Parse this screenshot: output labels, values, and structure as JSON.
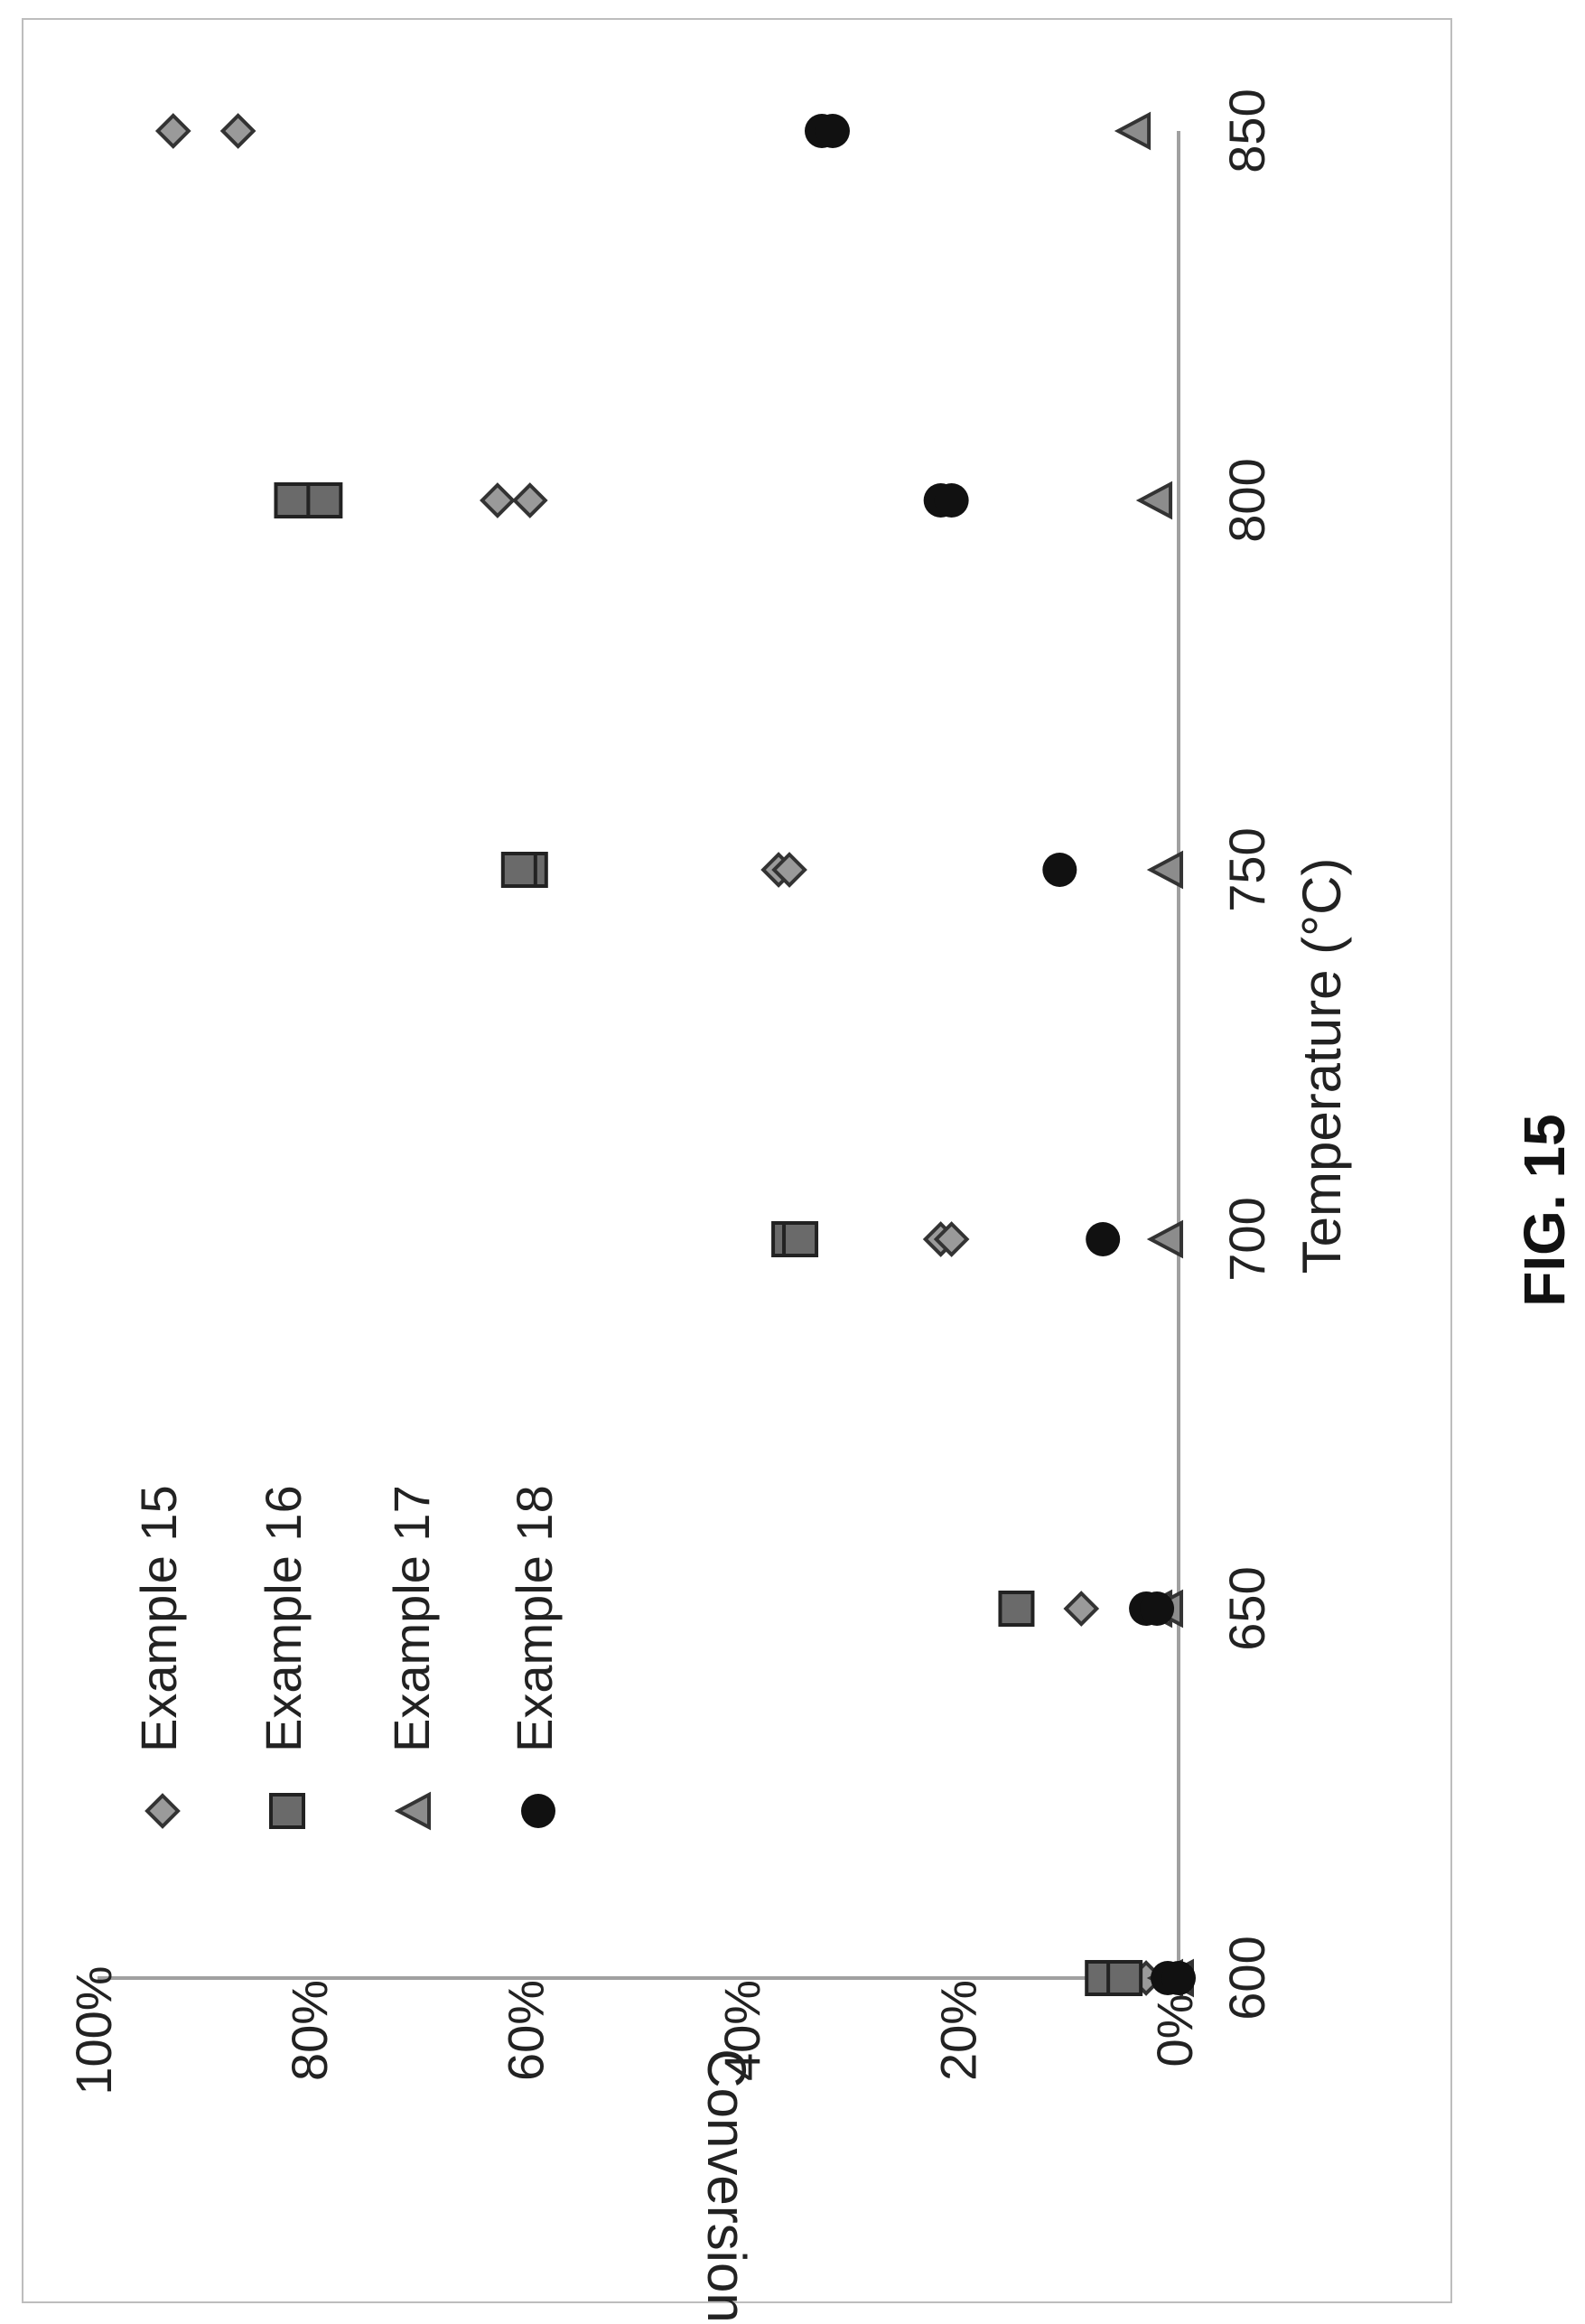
{
  "figure_label": "FIG. 15",
  "colors": {
    "diamond": "#9a9a9a",
    "square": "#6a6a6a",
    "triangle": "#8c8c8c",
    "circle": "#111111",
    "axis": "#a0a0a0",
    "text": "#222222"
  },
  "chart_data": {
    "type": "scatter",
    "title": "",
    "xlabel": "Temperature (°C)",
    "ylabel": "Conversion",
    "x_ticks": [
      "600",
      "650",
      "700",
      "750",
      "800",
      "850"
    ],
    "y_ticks": [
      "0%",
      "20%",
      "40%",
      "60%",
      "80%",
      "100%"
    ],
    "xlim": [
      600,
      850
    ],
    "ylim": [
      0,
      100
    ],
    "grid": false,
    "legend_position": "top-left",
    "series": [
      {
        "name": "Example 15",
        "marker": "diamond-icon",
        "points": [
          [
            600,
            4
          ],
          [
            600,
            3
          ],
          [
            650,
            9
          ],
          [
            700,
            22
          ],
          [
            700,
            21
          ],
          [
            750,
            37
          ],
          [
            750,
            36
          ],
          [
            800,
            63
          ],
          [
            800,
            60
          ],
          [
            850,
            93
          ],
          [
            850,
            87
          ]
        ]
      },
      {
        "name": "Example 16",
        "marker": "square-icon",
        "points": [
          [
            600,
            7
          ],
          [
            600,
            5
          ],
          [
            650,
            15
          ],
          [
            700,
            36
          ],
          [
            700,
            35
          ],
          [
            750,
            60
          ],
          [
            750,
            61
          ],
          [
            800,
            82
          ],
          [
            800,
            79
          ]
        ]
      },
      {
        "name": "Example 17",
        "marker": "triangle-icon",
        "points": [
          [
            600,
            1
          ],
          [
            600,
            0
          ],
          [
            650,
            2
          ],
          [
            650,
            1
          ],
          [
            700,
            1
          ],
          [
            750,
            1
          ],
          [
            800,
            2
          ],
          [
            850,
            4
          ]
        ]
      },
      {
        "name": "Example 18",
        "marker": "circle-icon",
        "points": [
          [
            600,
            1
          ],
          [
            600,
            0
          ],
          [
            650,
            3
          ],
          [
            650,
            2
          ],
          [
            700,
            7
          ],
          [
            750,
            11
          ],
          [
            800,
            22
          ],
          [
            800,
            21
          ],
          [
            850,
            33
          ],
          [
            850,
            32
          ]
        ]
      }
    ]
  }
}
